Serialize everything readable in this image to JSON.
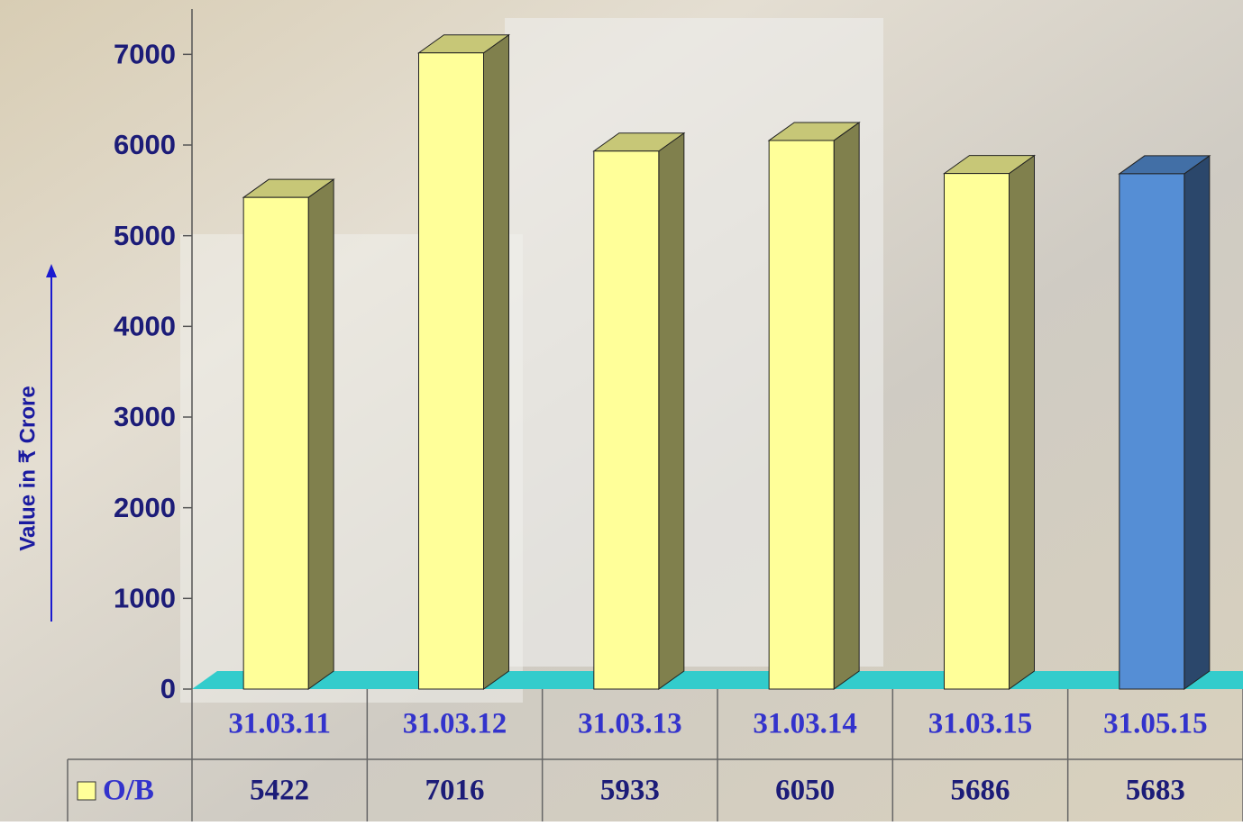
{
  "chart_data": {
    "type": "bar3d",
    "y_label": "Value in ₹ Crore",
    "categories": [
      "31.03.11",
      "31.03.12",
      "31.03.13",
      "31.03.14",
      "31.03.15",
      "31.05.15"
    ],
    "series": [
      {
        "name": "O/B",
        "color": "#ffff99",
        "colors": [
          "#ffff99",
          "#ffff99",
          "#ffff99",
          "#ffff99",
          "#ffff99",
          "#558ed5"
        ],
        "values": [
          5422,
          7016,
          5933,
          6050,
          5686,
          5683
        ]
      }
    ],
    "ylim": [
      0,
      7500
    ],
    "yticks": [
      0,
      1000,
      2000,
      3000,
      4000,
      5000,
      6000,
      7000
    ],
    "floor_color": "#33cccc"
  }
}
